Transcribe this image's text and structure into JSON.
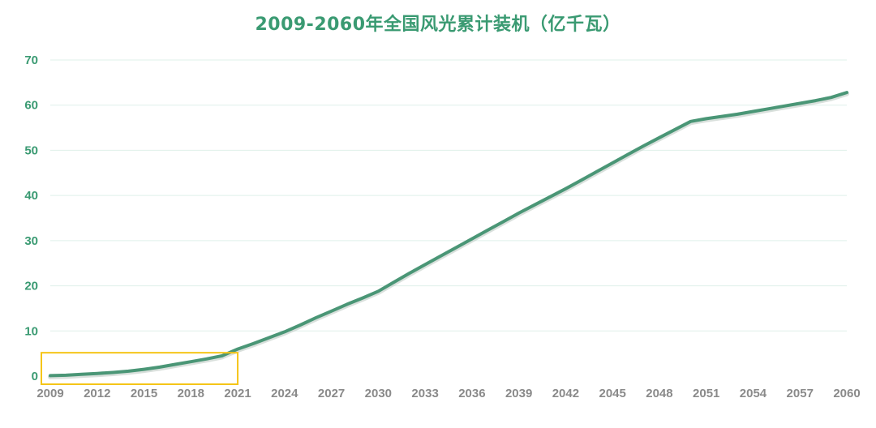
{
  "colors": {
    "title": "#3a9a72",
    "y_tick": "#3a9a72",
    "x_tick": "#8a8a8a",
    "line": "#4a9676",
    "grid": "#dff0ea",
    "highlight_box": "#f5c518"
  },
  "chart_data": {
    "type": "line",
    "title": "2009-2060年全国风光累计装机（亿千瓦）",
    "xlabel": "",
    "ylabel": "",
    "xlim": [
      2009,
      2060
    ],
    "ylim": [
      0,
      70
    ],
    "x_ticks": [
      "2009",
      "2012",
      "2015",
      "2018",
      "2021",
      "2024",
      "2027",
      "2030",
      "2033",
      "2036",
      "2039",
      "2042",
      "2045",
      "2048",
      "2051",
      "2054",
      "2057",
      "2060"
    ],
    "y_ticks": [
      "0",
      "10",
      "20",
      "30",
      "40",
      "50",
      "60",
      "70"
    ],
    "grid": true,
    "legend": "none",
    "series": [
      {
        "x": [
          2009,
          2010,
          2011,
          2012,
          2013,
          2014,
          2015,
          2016,
          2017,
          2018,
          2019,
          2020,
          2021,
          2022,
          2023,
          2024,
          2025,
          2026,
          2027,
          2028,
          2029,
          2030,
          2031,
          2032,
          2033,
          2034,
          2035,
          2036,
          2037,
          2038,
          2039,
          2040,
          2041,
          2042,
          2043,
          2044,
          2045,
          2046,
          2047,
          2048,
          2049,
          2050,
          2051,
          2052,
          2053,
          2054,
          2055,
          2056,
          2057,
          2058,
          2059,
          2060
        ],
        "y": [
          0.1,
          0.2,
          0.4,
          0.6,
          0.8,
          1.1,
          1.5,
          2.0,
          2.6,
          3.2,
          3.8,
          4.5,
          6.0,
          7.2,
          8.5,
          9.8,
          11.3,
          12.9,
          14.4,
          15.9,
          17.3,
          18.8,
          20.8,
          22.8,
          24.7,
          26.6,
          28.5,
          30.4,
          32.3,
          34.2,
          36.1,
          37.9,
          39.7,
          41.5,
          43.4,
          45.3,
          47.2,
          49.1,
          51.0,
          52.8,
          54.6,
          56.4,
          57.0,
          57.5,
          58.0,
          58.6,
          59.2,
          59.8,
          60.4,
          61.0,
          61.7,
          62.8
        ]
      }
    ],
    "annotations": [
      {
        "type": "highlight-box",
        "x_range": [
          2009,
          2021
        ],
        "y_range": [
          0,
          5
        ]
      }
    ]
  }
}
